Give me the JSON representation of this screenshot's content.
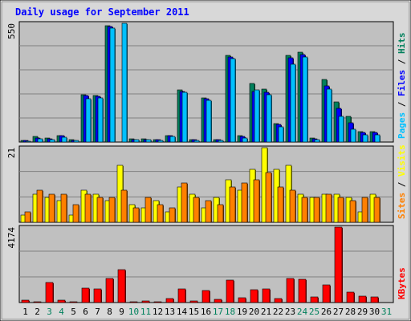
{
  "chart_data": {
    "type": "bar",
    "title": "Daily usage for September 2011",
    "days": [
      "1",
      "2",
      "3",
      "4",
      "5",
      "6",
      "7",
      "8",
      "9",
      "10",
      "11",
      "12",
      "13",
      "14",
      "15",
      "16",
      "17",
      "18",
      "19",
      "20",
      "21",
      "22",
      "23",
      "24",
      "25",
      "26",
      "27",
      "28",
      "29",
      "30",
      "31"
    ],
    "weekend_days": [
      "3",
      "4",
      "10",
      "11",
      "17",
      "18",
      "24",
      "25",
      "31"
    ],
    "colors": {
      "hits": "#00805c",
      "files": "#0000ff",
      "pages": "#00c0ff",
      "visits": "#ffff00",
      "sites": "#ff8000",
      "kbytes": "#ff0000",
      "weekday_label": "#000000",
      "weekend_label": "#00805c",
      "title": "#0000ff",
      "plot_bg": "#c0c0c0",
      "frame_bg": "#d8d8d8"
    },
    "panels": [
      {
        "id": "top",
        "ymax_label": "550",
        "ymax": 550,
        "legend": [
          {
            "text": "Hits",
            "color": "#00805c"
          },
          {
            "text": "Files",
            "color": "#0000ff"
          },
          {
            "text": "Pages",
            "color": "#00c0ff"
          }
        ],
        "separator": " / ",
        "series": [
          {
            "name": "Hits",
            "color": "#00805c",
            "values": [
              8,
              25,
              20,
              30,
              10,
              220,
              215,
              540,
              0,
              15,
              15,
              12,
              30,
              240,
              12,
              205,
              12,
              400,
              30,
              270,
              245,
              85,
              400,
              415,
              20,
              290,
              185,
              120,
              50,
              50,
              0
            ]
          },
          {
            "name": "Files",
            "color": "#0000ff",
            "values": [
              6,
              18,
              15,
              28,
              8,
              215,
              210,
              535,
              0,
              12,
              12,
              10,
              28,
              235,
              10,
              200,
              10,
              395,
              25,
              235,
              230,
              80,
              390,
              405,
              16,
              260,
              155,
              90,
              45,
              45,
              0
            ]
          },
          {
            "name": "Pages",
            "color": "#00c0ff",
            "values": [
              5,
              15,
              12,
              22,
              6,
              200,
              205,
              528,
              550,
              10,
              10,
              8,
              25,
              230,
              8,
              195,
              8,
              385,
              20,
              240,
              220,
              70,
              360,
              395,
              12,
              245,
              120,
              60,
              32,
              35,
              0
            ]
          }
        ]
      },
      {
        "id": "middle",
        "ymax_label": "21",
        "ymax": 21,
        "legend": [
          {
            "text": "Visits",
            "color": "#ffff00"
          },
          {
            "text": "Sites",
            "color": "#ff8000"
          }
        ],
        "separator": " / ",
        "series": [
          {
            "name": "Visits",
            "color": "#ffff00",
            "values": [
              2,
              8,
              7,
              6,
              2,
              9,
              8,
              6,
              16,
              5,
              4,
              6,
              3,
              10,
              8,
              4,
              7,
              12,
              9,
              15,
              21,
              15,
              16,
              8,
              7,
              8,
              8,
              7,
              3,
              8,
              0
            ]
          },
          {
            "name": "Sites",
            "color": "#ff8000",
            "values": [
              3,
              9,
              8,
              8,
              5,
              8,
              7,
              7,
              9,
              4,
              7,
              5,
              4,
              11,
              7,
              6,
              5,
              10,
              11,
              12,
              14,
              10,
              9,
              7,
              7,
              8,
              7,
              6,
              7,
              7,
              0
            ]
          }
        ]
      },
      {
        "id": "bottom",
        "ymax_label": "4174",
        "ymax": 4174,
        "legend": [
          {
            "text": "KBytes",
            "color": "#ff0000"
          }
        ],
        "separator": "",
        "series": [
          {
            "name": "KBytes",
            "color": "#ff0000",
            "values": [
              120,
              60,
              1130,
              120,
              60,
              780,
              740,
              1350,
              1820,
              60,
              100,
              60,
              220,
              750,
              110,
              650,
              160,
              1250,
              280,
              690,
              760,
              230,
              1320,
              1300,
              300,
              960,
              4174,
              570,
              350,
              300,
              0
            ]
          }
        ]
      }
    ]
  }
}
